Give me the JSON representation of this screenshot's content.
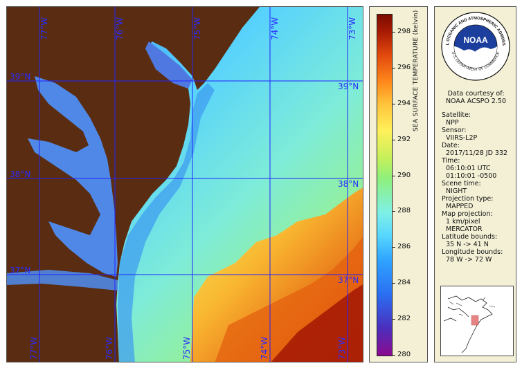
{
  "map": {
    "lon_labels": [
      "77°W",
      "76°W",
      "75°W",
      "74°W",
      "73°W"
    ],
    "lat_labels": [
      "39°N",
      "38°N",
      "37°N"
    ],
    "colors": {
      "land": "#5a2d12",
      "grid": "#2222ff"
    }
  },
  "colorbar": {
    "title": "SEA SURFACE TEMPERATURE (kelvin)",
    "ticks": [
      "298",
      "296",
      "294",
      "292",
      "290",
      "288",
      "286",
      "284",
      "282",
      "280"
    ],
    "range": [
      280,
      299
    ]
  },
  "logo": {
    "text": "NOAA",
    "ring_top": "NATIONAL OCEANIC AND ATMOSPHERIC ADMINISTRATION",
    "ring_bottom": "U.S. DEPARTMENT OF COMMERCE"
  },
  "info": {
    "courtesy_1": "Data courtesy of:",
    "courtesy_2": "NOAA ACSPO 2.50",
    "satellite_label": "Satellite:",
    "satellite": "NPP",
    "sensor_label": "Sensor:",
    "sensor": "VIIRS-L2P",
    "date_label": "Date:",
    "date": "2017/11/28 JD 332",
    "time_label": "Time:",
    "time_utc": "06:10:01 UTC",
    "time_local": "01:10:01 -0500",
    "scene_label": "Scene time:",
    "scene": "NIGHT",
    "proj_type_label": "Projection type:",
    "proj_type": "MAPPED",
    "map_proj_label": "Map projection:",
    "map_res": "1 km/pixel",
    "map_proj": "MERCATOR",
    "lat_label": "Latitude bounds:",
    "lat_bounds": "35 N -> 41 N",
    "lon_label": "Longitude bounds:",
    "lon_bounds": "78 W -> 72 W"
  }
}
